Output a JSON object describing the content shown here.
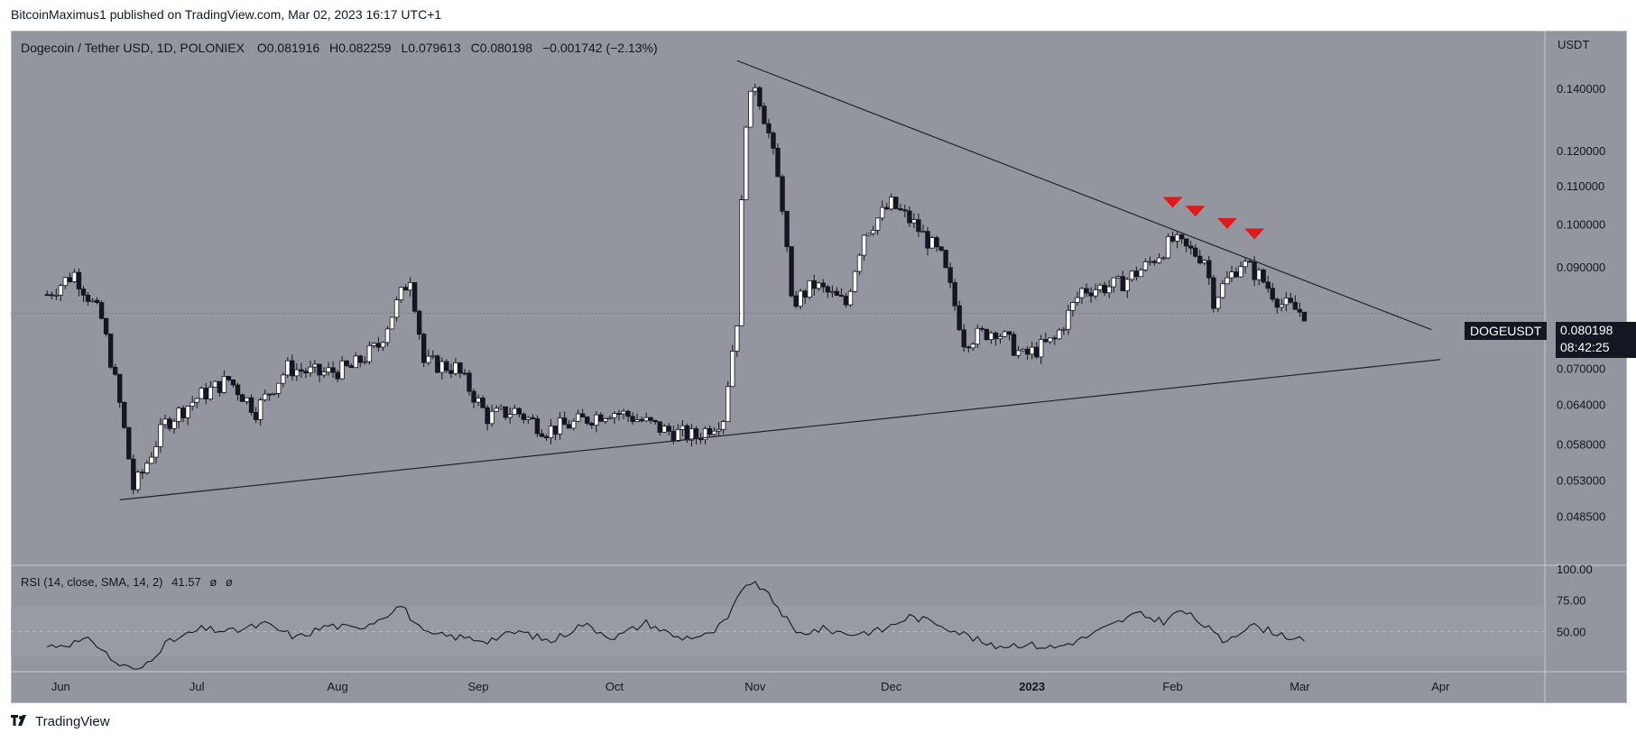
{
  "header": {
    "publish_line": "BitcoinMaximus1 published on TradingView.com, Mar 02, 2023 16:17 UTC+1"
  },
  "legend": {
    "symbol": "Dogecoin / Tether USD, 1D, POLONIEX",
    "open_label": "O",
    "open": "0.081916",
    "high_label": "H",
    "high": "0.082259",
    "low_label": "L",
    "low": "0.079613",
    "close_label": "C",
    "close": "0.080198",
    "change": "−0.001742 (−2.13%)"
  },
  "rsi_legend": {
    "label": "RSI (14, close, SMA, 14, 2)",
    "value": "41.57",
    "ma1": "ø",
    "ma2": "ø"
  },
  "price_scale": {
    "currency": "USDT"
  },
  "price_tag": {
    "symbol": "DOGEUSDT",
    "price": "0.080198",
    "countdown": "08:42:25"
  },
  "footer": {
    "brand": "TradingView",
    "logo_icon": "tradingview-logo-icon"
  },
  "colors": {
    "background": "#93969e",
    "candle_up": "#ffffff",
    "candle_down": "#131722",
    "marker": "#e01a1a",
    "trendline": "#1e222d"
  },
  "chart_data": [
    {
      "type": "candlestick",
      "title": "Dogecoin / Tether USD, 1D, POLONIEX",
      "ylabel": "USDT",
      "y_scale": "log",
      "ylim": [
        0.044,
        0.158
      ],
      "x_ticks": [
        "Jun",
        "Jul",
        "Aug",
        "Sep",
        "Oct",
        "Nov",
        "Dec",
        "2023",
        "Feb",
        "Mar",
        "Apr"
      ],
      "y_ticks": [
        "0.140000",
        "0.120000",
        "0.110000",
        "0.100000",
        "0.090000",
        "0.070000",
        "0.064000",
        "0.058000",
        "0.053000",
        "0.048500"
      ],
      "grid": false,
      "series": [
        {
          "name": "DOGEUSDT",
          "x": [
            "2022-05-29",
            "2022-06-04",
            "2022-06-10",
            "2022-06-14",
            "2022-06-17",
            "2022-06-19",
            "2022-06-24",
            "2022-07-01",
            "2022-07-08",
            "2022-07-14",
            "2022-07-21",
            "2022-07-28",
            "2022-08-04",
            "2022-08-10",
            "2022-08-14",
            "2022-08-17",
            "2022-08-20",
            "2022-08-27",
            "2022-09-03",
            "2022-09-09",
            "2022-09-16",
            "2022-09-22",
            "2022-09-30",
            "2022-10-05",
            "2022-10-12",
            "2022-10-19",
            "2022-10-25",
            "2022-10-28",
            "2022-10-30",
            "2022-11-01",
            "2022-11-04",
            "2022-11-07",
            "2022-11-09",
            "2022-11-14",
            "2022-11-21",
            "2022-11-25",
            "2022-12-01",
            "2022-12-06",
            "2022-12-12",
            "2022-12-17",
            "2022-12-24",
            "2022-12-30",
            "2023-01-06",
            "2023-01-12",
            "2023-01-20",
            "2023-01-26",
            "2023-02-01",
            "2023-02-04",
            "2023-02-08",
            "2023-02-10",
            "2023-02-16",
            "2023-02-20",
            "2023-02-25",
            "2023-03-02"
          ],
          "close": [
            0.084,
            0.0885,
            0.079,
            0.064,
            0.052,
            0.054,
            0.061,
            0.065,
            0.068,
            0.063,
            0.07,
            0.069,
            0.07,
            0.074,
            0.082,
            0.088,
            0.071,
            0.07,
            0.062,
            0.063,
            0.06,
            0.061,
            0.063,
            0.062,
            0.06,
            0.059,
            0.062,
            0.079,
            0.13,
            0.142,
            0.125,
            0.105,
            0.082,
            0.086,
            0.082,
            0.098,
            0.105,
            0.1,
            0.092,
            0.075,
            0.077,
            0.072,
            0.075,
            0.085,
            0.086,
            0.09,
            0.096,
            0.094,
            0.092,
            0.083,
            0.091,
            0.088,
            0.082,
            0.0802
          ],
          "high": [
            0.087,
            0.09,
            0.082,
            0.068,
            0.056,
            0.058,
            0.064,
            0.07,
            0.071,
            0.067,
            0.073,
            0.072,
            0.073,
            0.077,
            0.087,
            0.0905,
            0.076,
            0.072,
            0.065,
            0.066,
            0.063,
            0.069,
            0.066,
            0.069,
            0.063,
            0.062,
            0.064,
            0.087,
            0.145,
            0.152,
            0.135,
            0.114,
            0.09,
            0.09,
            0.089,
            0.108,
            0.111,
            0.103,
            0.096,
            0.081,
            0.081,
            0.076,
            0.079,
            0.09,
            0.09,
            0.094,
            0.1,
            0.097,
            0.095,
            0.088,
            0.093,
            0.091,
            0.085,
            0.0822
          ],
          "low": [
            0.08,
            0.083,
            0.069,
            0.05,
            0.049,
            0.0505,
            0.059,
            0.062,
            0.065,
            0.0605,
            0.066,
            0.065,
            0.066,
            0.07,
            0.076,
            0.082,
            0.068,
            0.066,
            0.06,
            0.058,
            0.058,
            0.058,
            0.06,
            0.059,
            0.057,
            0.0575,
            0.06,
            0.07,
            0.11,
            0.12,
            0.105,
            0.078,
            0.076,
            0.08,
            0.076,
            0.087,
            0.096,
            0.093,
            0.088,
            0.072,
            0.073,
            0.067,
            0.071,
            0.082,
            0.082,
            0.086,
            0.09,
            0.09,
            0.088,
            0.08,
            0.082,
            0.084,
            0.079,
            0.0796
          ]
        }
      ],
      "trendlines": [
        {
          "name": "descending-resistance",
          "from": [
            "2022-10-28",
            0.15
          ],
          "to": [
            "2023-03-30",
            0.077
          ]
        },
        {
          "name": "ascending-support",
          "from": [
            "2022-06-14",
            0.0505
          ],
          "to": [
            "2023-04-01",
            0.0715
          ]
        }
      ],
      "rejection_markers": [
        "2023-02-01",
        "2023-02-06",
        "2023-02-13",
        "2023-02-19"
      ]
    },
    {
      "type": "line",
      "title": "RSI (14, close, SMA, 14, 2)",
      "ylim": [
        20,
        100
      ],
      "y_ticks": [
        "100.00",
        "75.00",
        "50.00"
      ],
      "bands": [
        30,
        70
      ],
      "midline": 50,
      "series": [
        {
          "name": "RSI",
          "x": [
            "2022-05-29",
            "2022-06-08",
            "2022-06-13",
            "2022-06-18",
            "2022-06-24",
            "2022-07-02",
            "2022-07-09",
            "2022-07-16",
            "2022-07-23",
            "2022-07-30",
            "2022-08-05",
            "2022-08-10",
            "2022-08-15",
            "2022-08-20",
            "2022-08-26",
            "2022-09-03",
            "2022-09-10",
            "2022-09-17",
            "2022-09-24",
            "2022-10-01",
            "2022-10-08",
            "2022-10-15",
            "2022-10-22",
            "2022-10-26",
            "2022-10-30",
            "2022-11-02",
            "2022-11-06",
            "2022-11-10",
            "2022-11-16",
            "2022-11-22",
            "2022-11-29",
            "2022-12-05",
            "2022-12-11",
            "2022-12-17",
            "2022-12-23",
            "2022-12-30",
            "2023-01-06",
            "2023-01-12",
            "2023-01-18",
            "2023-01-24",
            "2023-01-30",
            "2023-02-03",
            "2023-02-08",
            "2023-02-12",
            "2023-02-18",
            "2023-02-24",
            "2023-03-02"
          ],
          "y": [
            38,
            43,
            25,
            18,
            40,
            52,
            50,
            56,
            45,
            55,
            52,
            60,
            71,
            48,
            46,
            43,
            50,
            42,
            56,
            45,
            57,
            45,
            47,
            60,
            89,
            86,
            70,
            48,
            52,
            48,
            51,
            62,
            57,
            48,
            38,
            40,
            37,
            44,
            54,
            64,
            58,
            67,
            55,
            42,
            55,
            49,
            41.57
          ]
        }
      ]
    }
  ]
}
